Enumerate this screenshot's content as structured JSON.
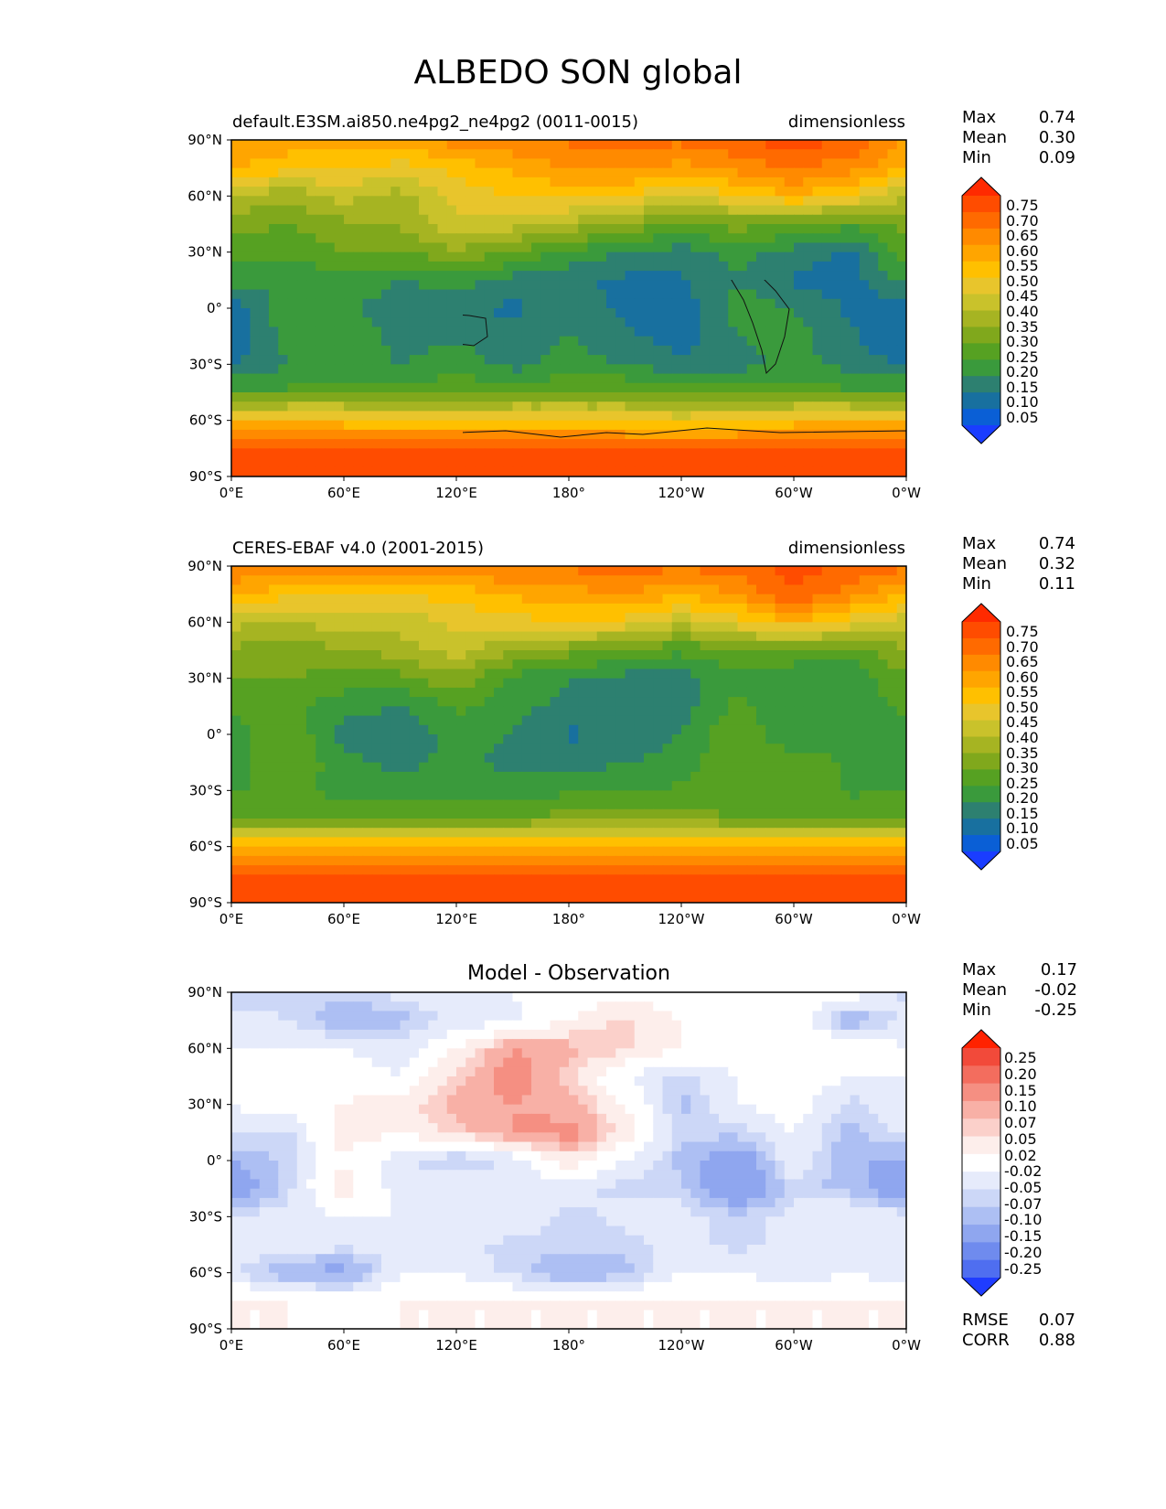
{
  "title": "ALBEDO SON global",
  "panels": [
    {
      "left_title": "default.E3SM.ai850.ne4pg2_ne4pg2 (0011-0015)",
      "center_title": "",
      "right_title": "dimensionless",
      "stats": [
        {
          "label": "Max",
          "value": "0.74"
        },
        {
          "label": "Mean",
          "value": "0.30"
        },
        {
          "label": "Min",
          "value": "0.09"
        }
      ],
      "colorbar_ticks": [
        "0.75",
        "0.70",
        "0.65",
        "0.60",
        "0.55",
        "0.50",
        "0.45",
        "0.40",
        "0.35",
        "0.30",
        "0.25",
        "0.20",
        "0.15",
        "0.10",
        "0.05"
      ],
      "colorbar_colors": [
        "#ff2a00",
        "#ff4c00",
        "#ff6a00",
        "#ff8a00",
        "#ffa500",
        "#ffc000",
        "#e8c52c",
        "#c9c22b",
        "#a6b422",
        "#80a81c",
        "#56a122",
        "#3a9a3c",
        "#2d8070",
        "#18709f",
        "#0a5fd6",
        "#1a3dff"
      ],
      "extend_colors": {
        "max": "#ff2a00",
        "min": "#1a3dff"
      },
      "footer": []
    },
    {
      "left_title": "CERES-EBAF v4.0 (2001-2015)",
      "center_title": "",
      "right_title": "dimensionless",
      "stats": [
        {
          "label": "Max",
          "value": "0.74"
        },
        {
          "label": "Mean",
          "value": "0.32"
        },
        {
          "label": "Min",
          "value": "0.11"
        }
      ],
      "colorbar_ticks": [
        "0.75",
        "0.70",
        "0.65",
        "0.60",
        "0.55",
        "0.50",
        "0.45",
        "0.40",
        "0.35",
        "0.30",
        "0.25",
        "0.20",
        "0.15",
        "0.10",
        "0.05"
      ],
      "colorbar_colors": [
        "#ff2a00",
        "#ff4c00",
        "#ff6a00",
        "#ff8a00",
        "#ffa500",
        "#ffc000",
        "#e8c52c",
        "#c9c22b",
        "#a6b422",
        "#80a81c",
        "#56a122",
        "#3a9a3c",
        "#2d8070",
        "#18709f",
        "#0a5fd6",
        "#1a3dff"
      ],
      "extend_colors": {
        "max": "#ff2a00",
        "min": "#1a3dff"
      },
      "footer": []
    },
    {
      "left_title": "",
      "center_title": "Model - Observation",
      "right_title": "",
      "stats": [
        {
          "label": "Max",
          "value": "0.17"
        },
        {
          "label": "Mean",
          "value": "-0.02"
        },
        {
          "label": "Min",
          "value": "-0.25"
        }
      ],
      "colorbar_ticks": [
        "0.25",
        "0.20",
        "0.15",
        "0.10",
        "0.07",
        "0.05",
        "0.02",
        "-0.02",
        "-0.05",
        "-0.07",
        "-0.10",
        "-0.15",
        "-0.20",
        "-0.25"
      ],
      "colorbar_colors": [
        "#ff2200",
        "#f24a3a",
        "#f36d5e",
        "#f58f82",
        "#f8b0a6",
        "#fbd0ca",
        "#fdeeeb",
        "#ffffff",
        "#e6ebfb",
        "#ccd7f7",
        "#adbff3",
        "#8fa6ef",
        "#6f8bee",
        "#4f6ef0",
        "#1f3cff"
      ],
      "extend_colors": {
        "max": "#ff2200",
        "min": "#1f3cff"
      },
      "footer": [
        {
          "label": "RMSE",
          "value": "0.07"
        },
        {
          "label": "CORR",
          "value": "0.88"
        }
      ]
    }
  ],
  "chart_data": [
    {
      "type": "heatmap",
      "title": "default.E3SM.ai850.ne4pg2_ne4pg2 (0011-0015)",
      "units": "dimensionless",
      "x_ticks": [
        "0°E",
        "60°E",
        "120°E",
        "180°",
        "120°W",
        "60°W",
        "0°W"
      ],
      "y_ticks": [
        "90°N",
        "60°N",
        "30°N",
        "0°",
        "30°S",
        "60°S",
        "90°S"
      ],
      "levels": [
        0.05,
        0.1,
        0.15,
        0.2,
        0.25,
        0.3,
        0.35,
        0.4,
        0.45,
        0.5,
        0.55,
        0.6,
        0.65,
        0.7,
        0.75
      ],
      "lon": [
        0,
        30,
        60,
        90,
        120,
        150,
        180,
        210,
        240,
        270,
        300,
        330,
        360
      ],
      "lat": [
        90,
        75,
        60,
        45,
        30,
        15,
        0,
        -15,
        -30,
        -45,
        -60,
        -75,
        -90
      ],
      "values": [
        [
          0.6,
          0.58,
          0.56,
          0.58,
          0.62,
          0.64,
          0.66,
          0.68,
          0.66,
          0.7,
          0.72,
          0.7,
          0.6
        ],
        [
          0.55,
          0.52,
          0.5,
          0.48,
          0.52,
          0.56,
          0.6,
          0.62,
          0.58,
          0.62,
          0.66,
          0.62,
          0.55
        ],
        [
          0.4,
          0.36,
          0.42,
          0.38,
          0.46,
          0.5,
          0.52,
          0.5,
          0.44,
          0.5,
          0.55,
          0.5,
          0.4
        ],
        [
          0.32,
          0.3,
          0.34,
          0.36,
          0.44,
          0.42,
          0.38,
          0.34,
          0.28,
          0.32,
          0.3,
          0.26,
          0.32
        ],
        [
          0.28,
          0.26,
          0.3,
          0.3,
          0.34,
          0.3,
          0.24,
          0.2,
          0.18,
          0.22,
          0.18,
          0.14,
          0.28
        ],
        [
          0.22,
          0.2,
          0.24,
          0.2,
          0.22,
          0.18,
          0.16,
          0.14,
          0.14,
          0.2,
          0.14,
          0.12,
          0.22
        ],
        [
          0.12,
          0.24,
          0.22,
          0.16,
          0.16,
          0.14,
          0.18,
          0.14,
          0.12,
          0.22,
          0.2,
          0.14,
          0.12
        ],
        [
          0.1,
          0.22,
          0.24,
          0.18,
          0.18,
          0.16,
          0.2,
          0.16,
          0.12,
          0.2,
          0.22,
          0.16,
          0.1
        ],
        [
          0.14,
          0.2,
          0.22,
          0.2,
          0.24,
          0.18,
          0.22,
          0.2,
          0.16,
          0.18,
          0.22,
          0.18,
          0.14
        ],
        [
          0.26,
          0.26,
          0.28,
          0.26,
          0.28,
          0.28,
          0.3,
          0.3,
          0.28,
          0.28,
          0.28,
          0.26,
          0.26
        ],
        [
          0.52,
          0.54,
          0.52,
          0.5,
          0.5,
          0.52,
          0.5,
          0.5,
          0.48,
          0.5,
          0.52,
          0.54,
          0.52
        ],
        [
          0.7,
          0.7,
          0.7,
          0.7,
          0.7,
          0.7,
          0.7,
          0.7,
          0.7,
          0.7,
          0.7,
          0.7,
          0.7
        ],
        [
          0.72,
          0.72,
          0.72,
          0.72,
          0.72,
          0.72,
          0.72,
          0.72,
          0.72,
          0.72,
          0.72,
          0.72,
          0.72
        ]
      ]
    },
    {
      "type": "heatmap",
      "title": "CERES-EBAF v4.0 (2001-2015)",
      "units": "dimensionless",
      "x_ticks": [
        "0°E",
        "60°E",
        "120°E",
        "180°",
        "120°W",
        "60°W",
        "0°W"
      ],
      "y_ticks": [
        "90°N",
        "60°N",
        "30°N",
        "0°",
        "30°S",
        "60°S",
        "90°S"
      ],
      "levels": [
        0.05,
        0.1,
        0.15,
        0.2,
        0.25,
        0.3,
        0.35,
        0.4,
        0.45,
        0.5,
        0.55,
        0.6,
        0.65,
        0.7,
        0.75
      ],
      "lon": [
        0,
        30,
        60,
        90,
        120,
        150,
        180,
        210,
        240,
        270,
        300,
        330,
        360
      ],
      "lat": [
        90,
        75,
        60,
        45,
        30,
        15,
        0,
        -15,
        -30,
        -45,
        -60,
        -75,
        -90
      ],
      "values": [
        [
          0.66,
          0.64,
          0.62,
          0.62,
          0.64,
          0.66,
          0.66,
          0.68,
          0.66,
          0.68,
          0.72,
          0.7,
          0.66
        ],
        [
          0.55,
          0.52,
          0.5,
          0.5,
          0.52,
          0.56,
          0.58,
          0.6,
          0.56,
          0.6,
          0.7,
          0.62,
          0.55
        ],
        [
          0.42,
          0.38,
          0.44,
          0.42,
          0.46,
          0.48,
          0.5,
          0.48,
          0.42,
          0.48,
          0.54,
          0.48,
          0.42
        ],
        [
          0.34,
          0.32,
          0.34,
          0.38,
          0.42,
          0.36,
          0.32,
          0.3,
          0.26,
          0.3,
          0.3,
          0.28,
          0.34
        ],
        [
          0.3,
          0.3,
          0.28,
          0.28,
          0.34,
          0.24,
          0.2,
          0.18,
          0.18,
          0.24,
          0.2,
          0.2,
          0.3
        ],
        [
          0.26,
          0.26,
          0.22,
          0.2,
          0.26,
          0.22,
          0.18,
          0.18,
          0.18,
          0.26,
          0.2,
          0.22,
          0.26
        ],
        [
          0.22,
          0.3,
          0.18,
          0.16,
          0.22,
          0.2,
          0.14,
          0.16,
          0.2,
          0.3,
          0.2,
          0.24,
          0.22
        ],
        [
          0.22,
          0.3,
          0.22,
          0.18,
          0.22,
          0.18,
          0.18,
          0.2,
          0.22,
          0.3,
          0.28,
          0.24,
          0.22
        ],
        [
          0.24,
          0.28,
          0.22,
          0.22,
          0.24,
          0.22,
          0.24,
          0.24,
          0.26,
          0.26,
          0.28,
          0.24,
          0.24
        ],
        [
          0.3,
          0.3,
          0.3,
          0.3,
          0.3,
          0.3,
          0.32,
          0.32,
          0.32,
          0.3,
          0.3,
          0.3,
          0.3
        ],
        [
          0.56,
          0.56,
          0.56,
          0.56,
          0.56,
          0.56,
          0.56,
          0.56,
          0.56,
          0.56,
          0.56,
          0.56,
          0.56
        ],
        [
          0.7,
          0.7,
          0.7,
          0.7,
          0.7,
          0.7,
          0.7,
          0.7,
          0.7,
          0.7,
          0.7,
          0.7,
          0.7
        ],
        [
          0.7,
          0.7,
          0.7,
          0.7,
          0.7,
          0.7,
          0.7,
          0.7,
          0.7,
          0.7,
          0.7,
          0.7,
          0.7
        ]
      ]
    },
    {
      "type": "heatmap",
      "title": "Model - Observation",
      "x_ticks": [
        "0°E",
        "60°E",
        "120°E",
        "180°",
        "120°W",
        "60°W",
        "0°W"
      ],
      "y_ticks": [
        "90°N",
        "60°N",
        "30°N",
        "0°",
        "30°S",
        "60°S",
        "90°S"
      ],
      "levels": [
        -0.25,
        -0.2,
        -0.15,
        -0.1,
        -0.07,
        -0.05,
        -0.02,
        0.02,
        0.05,
        0.07,
        0.1,
        0.15,
        0.2,
        0.25
      ],
      "lon": [
        0,
        30,
        60,
        90,
        120,
        150,
        180,
        210,
        240,
        270,
        300,
        330,
        360
      ],
      "lat": [
        90,
        75,
        60,
        45,
        30,
        15,
        0,
        -15,
        -30,
        -45,
        -60,
        -75,
        -90
      ],
      "values": [
        [
          -0.06,
          -0.06,
          -0.06,
          -0.04,
          -0.02,
          -0.02,
          0.0,
          0.0,
          0.0,
          0.02,
          0.0,
          0.0,
          -0.06
        ],
        [
          -0.04,
          -0.05,
          -0.1,
          -0.08,
          -0.04,
          -0.03,
          0.02,
          0.06,
          0.02,
          0.0,
          0.02,
          -0.1,
          -0.04
        ],
        [
          -0.02,
          -0.02,
          -0.02,
          -0.04,
          0.02,
          0.1,
          0.08,
          0.06,
          0.02,
          0.02,
          0.01,
          0.02,
          -0.02
        ],
        [
          -0.02,
          -0.02,
          0.0,
          -0.02,
          0.06,
          0.12,
          0.06,
          -0.02,
          -0.06,
          -0.02,
          0.0,
          -0.02,
          -0.02
        ],
        [
          -0.02,
          0.0,
          0.02,
          0.04,
          0.08,
          0.1,
          0.08,
          0.02,
          -0.08,
          -0.02,
          0.0,
          -0.06,
          -0.02
        ],
        [
          -0.04,
          -0.06,
          0.04,
          0.02,
          0.06,
          0.1,
          0.12,
          0.04,
          -0.06,
          -0.06,
          -0.02,
          -0.08,
          -0.04
        ],
        [
          -0.1,
          -0.06,
          0.02,
          -0.04,
          -0.08,
          -0.04,
          0.04,
          -0.02,
          -0.08,
          -0.14,
          -0.02,
          -0.1,
          -0.1
        ],
        [
          -0.14,
          -0.06,
          0.04,
          -0.04,
          -0.02,
          -0.04,
          -0.04,
          -0.06,
          -0.06,
          -0.16,
          -0.06,
          -0.08,
          -0.14
        ],
        [
          -0.04,
          -0.04,
          -0.02,
          -0.02,
          -0.02,
          -0.02,
          -0.06,
          -0.04,
          -0.04,
          -0.06,
          -0.04,
          -0.02,
          -0.04
        ],
        [
          -0.04,
          -0.02,
          -0.04,
          -0.04,
          -0.04,
          -0.06,
          -0.06,
          -0.06,
          -0.04,
          -0.06,
          -0.04,
          -0.02,
          -0.04
        ],
        [
          -0.04,
          -0.1,
          -0.12,
          -0.02,
          -0.02,
          -0.06,
          -0.1,
          -0.08,
          -0.02,
          -0.02,
          -0.04,
          -0.02,
          -0.04
        ],
        [
          0.02,
          0.02,
          0.0,
          0.02,
          0.02,
          0.02,
          0.02,
          0.02,
          0.02,
          0.02,
          0.02,
          0.02,
          0.02
        ],
        [
          0.02,
          0.02,
          0.02,
          0.02,
          0.02,
          0.02,
          0.02,
          0.02,
          0.02,
          0.02,
          0.02,
          0.02,
          0.02
        ]
      ]
    }
  ]
}
